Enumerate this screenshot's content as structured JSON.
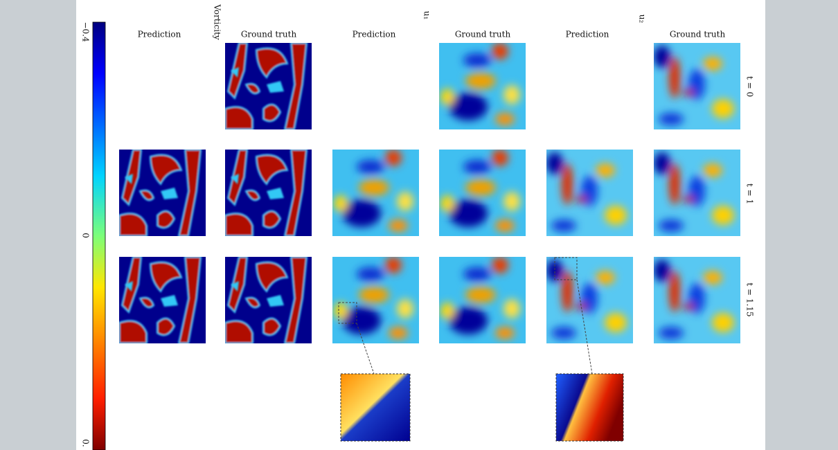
{
  "colorbar": {
    "labels": [
      "−0.4",
      "0",
      "0."
    ]
  },
  "groups": [
    "Vorticity",
    "u₁",
    "u₂"
  ],
  "columns": [
    "Prediction",
    "Ground truth",
    "Prediction",
    "Ground truth",
    "Prediction",
    "Ground truth"
  ],
  "rows": [
    "t = 0",
    "t = 1",
    "t = 1.15"
  ]
}
